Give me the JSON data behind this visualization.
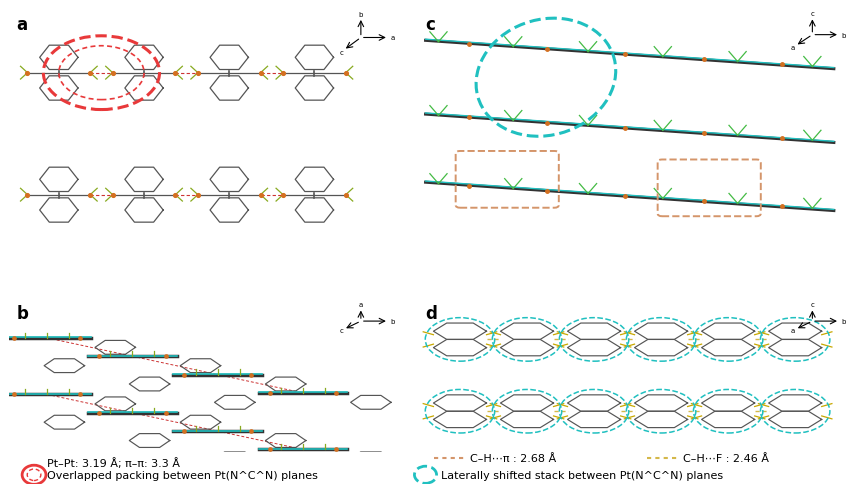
{
  "figure_width": 8.51,
  "figure_height": 4.85,
  "dpi": 100,
  "background_color": "#ffffff",
  "panel_labels": [
    "a",
    "b",
    "c",
    "d"
  ],
  "panel_label_fontsize": 12,
  "panel_label_weight": "bold",
  "legend_left": {
    "line1": "Pt–Pt: 3.19 Å; π–π: 3.3 Å",
    "line2": "Overlapped packing between Pt(N^C^N) planes",
    "circle_color": "#e8393a",
    "text_fontsize": 8
  },
  "legend_right": {
    "line1_dash1": "C–H⋯π : 2.68 Å",
    "line1_dash2": "C–H⋯F : 2.46 Å",
    "line2": "Laterally shifted stack between Pt(N^C^N) planes",
    "circle_color": "#2ecece",
    "dash1_color": "#d4956a",
    "dash2_color": "#d4b84a",
    "text_fontsize": 8
  }
}
